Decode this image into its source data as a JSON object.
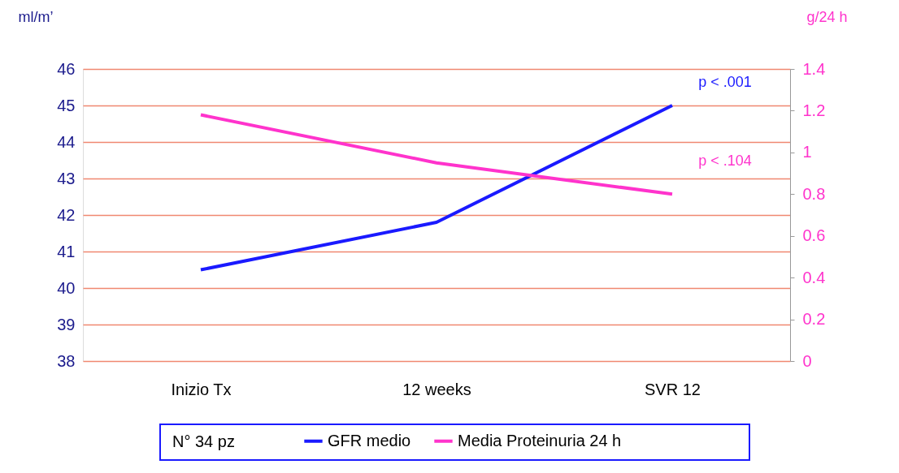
{
  "chart_data": {
    "type": "line",
    "categories": [
      "Inizio Tx",
      "12 weeks",
      "SVR 12"
    ],
    "series": [
      {
        "name": "GFR medio",
        "color": "#1a1aff",
        "values": [
          40.5,
          41.8,
          45.0
        ]
      },
      {
        "name": "Media Proteinuria 24 h",
        "color": "#ff33cc",
        "values": [
          1.18,
          0.95,
          0.8
        ],
        "axis": "y2"
      }
    ],
    "ylabel": "ml/m’",
    "y2label": "g/24 h",
    "ylim": [
      38,
      46
    ],
    "yticks": [
      38,
      39,
      40,
      41,
      42,
      43,
      44,
      45,
      46
    ],
    "y2lim": [
      0,
      1.4
    ],
    "y2ticks": [
      0,
      0.2,
      0.4,
      0.6,
      0.8,
      1,
      1.2,
      1.4
    ],
    "grid": "y",
    "legend": "bottom",
    "marker": "none",
    "line_style": "solid",
    "annotations": [
      "p < .001",
      "p < .104",
      "N° 34 pz"
    ]
  }
}
